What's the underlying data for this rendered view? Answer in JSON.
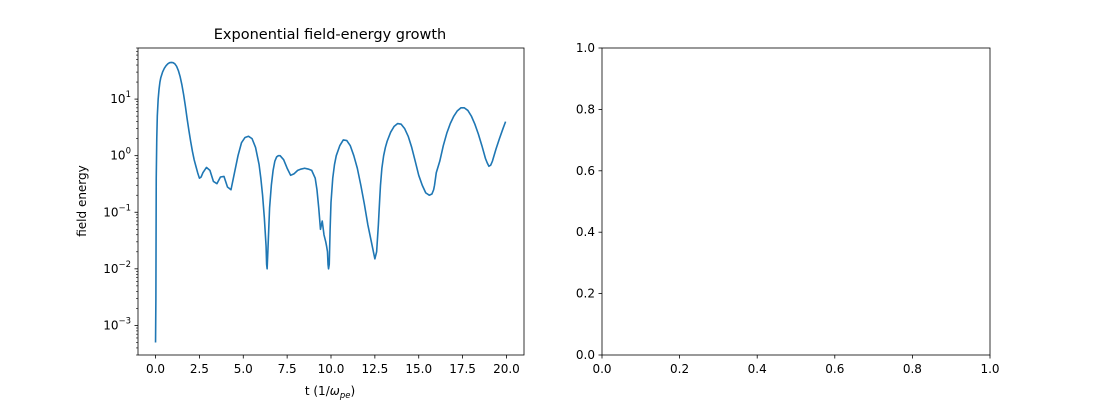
{
  "chart_data": [
    {
      "type": "line",
      "title": "Exponential field-energy growth",
      "xlabel_main": "t (1/",
      "xlabel_symbol": "ω",
      "xlabel_subscript": "pe",
      "xlabel_close": ")",
      "ylabel": "field energy",
      "yscale": "log",
      "xlim": [
        -0.9998,
        20.9998
      ],
      "ylim": [
        0.0003,
        80
      ],
      "xticks": [
        0,
        2.5,
        5,
        7.5,
        10,
        12.5,
        15,
        17.5,
        20
      ],
      "xtick_labels": [
        "0.0",
        "2.5",
        "5.0",
        "7.5",
        "10.0",
        "12.5",
        "15.0",
        "17.5",
        "20.0"
      ],
      "yticks": [
        0.001,
        0.01,
        0.1,
        1,
        10
      ],
      "ytick_labels": [
        {
          "base": "10",
          "exp": "−3"
        },
        {
          "base": "10",
          "exp": "−2"
        },
        {
          "base": "10",
          "exp": "−1"
        },
        {
          "base": "10",
          "exp": "0"
        },
        {
          "base": "10",
          "exp": "1"
        }
      ],
      "grid": false,
      "series": [
        {
          "color": "#1f77b4",
          "x": [
            0.0,
            0.02,
            0.04,
            0.07,
            0.1,
            0.15,
            0.2,
            0.25,
            0.3,
            0.4,
            0.5,
            0.6,
            0.7,
            0.8,
            0.9,
            1.0,
            1.1,
            1.2,
            1.3,
            1.4,
            1.5,
            1.6,
            1.7,
            1.8,
            1.9,
            2.0,
            2.1,
            2.2,
            2.3,
            2.4,
            2.5,
            2.6,
            2.7,
            2.9,
            3.1,
            3.3,
            3.5,
            3.7,
            3.9,
            4.1,
            4.3,
            4.5,
            4.7,
            4.9,
            5.1,
            5.3,
            5.5,
            5.7,
            5.9,
            6.0,
            6.1,
            6.2,
            6.3,
            6.33,
            6.36,
            6.4,
            6.5,
            6.6,
            6.7,
            6.8,
            6.9,
            7.0,
            7.1,
            7.3,
            7.5,
            7.7,
            7.9,
            8.1,
            8.3,
            8.5,
            8.7,
            8.9,
            9.1,
            9.2,
            9.3,
            9.4,
            9.5,
            9.6,
            9.7,
            9.75,
            9.8,
            9.83,
            9.86,
            9.9,
            9.95,
            10.0,
            10.1,
            10.2,
            10.3,
            10.5,
            10.7,
            10.9,
            11.1,
            11.3,
            11.5,
            11.7,
            11.9,
            12.1,
            12.3,
            12.5,
            12.6,
            12.7,
            12.75,
            12.78,
            12.82,
            12.9,
            13.0,
            13.1,
            13.2,
            13.4,
            13.6,
            13.8,
            14.0,
            14.2,
            14.4,
            14.6,
            14.8,
            15.0,
            15.2,
            15.4,
            15.6,
            15.75,
            15.85,
            15.9,
            16.0,
            16.2,
            16.4,
            16.6,
            16.8,
            17.0,
            17.2,
            17.4,
            17.6,
            17.8,
            18.0,
            18.2,
            18.4,
            18.6,
            18.8,
            18.9,
            19.0,
            19.1,
            19.2,
            19.4,
            19.6,
            19.8,
            19.95
          ],
          "y": [
            0.0005,
            0.003,
            0.4,
            2.0,
            5.0,
            10.0,
            15.0,
            20.0,
            24.0,
            30.0,
            35.0,
            39.0,
            42.0,
            44.0,
            44.5,
            44.0,
            42.0,
            38.0,
            32.0,
            25.0,
            18.0,
            12.0,
            7.5,
            4.5,
            2.8,
            1.8,
            1.2,
            0.85,
            0.65,
            0.5,
            0.4,
            0.42,
            0.5,
            0.62,
            0.55,
            0.35,
            0.32,
            0.42,
            0.43,
            0.28,
            0.25,
            0.5,
            1.0,
            1.7,
            2.1,
            2.2,
            2.0,
            1.4,
            0.7,
            0.4,
            0.2,
            0.08,
            0.025,
            0.012,
            0.01,
            0.02,
            0.12,
            0.3,
            0.55,
            0.8,
            0.95,
            1.0,
            1.0,
            0.85,
            0.6,
            0.45,
            0.48,
            0.55,
            0.58,
            0.6,
            0.58,
            0.55,
            0.4,
            0.25,
            0.12,
            0.05,
            0.07,
            0.04,
            0.03,
            0.025,
            0.02,
            0.012,
            0.01,
            0.012,
            0.05,
            0.15,
            0.4,
            0.7,
            1.0,
            1.5,
            1.9,
            1.85,
            1.5,
            1.0,
            0.6,
            0.3,
            0.14,
            0.06,
            0.03,
            0.015,
            0.02,
            0.06,
            0.12,
            0.18,
            0.3,
            0.6,
            1.0,
            1.4,
            1.8,
            2.6,
            3.3,
            3.7,
            3.6,
            3.0,
            2.2,
            1.4,
            0.8,
            0.45,
            0.3,
            0.22,
            0.2,
            0.21,
            0.25,
            0.3,
            0.5,
            0.8,
            1.5,
            2.5,
            3.7,
            5.0,
            6.2,
            7.0,
            7.0,
            6.3,
            5.0,
            3.6,
            2.4,
            1.5,
            0.9,
            0.75,
            0.65,
            0.68,
            0.8,
            1.3,
            2.0,
            3.0,
            4.0
          ]
        }
      ]
    },
    {
      "type": "line",
      "title": "",
      "xlabel": "",
      "ylabel": "",
      "xlim": [
        0,
        1
      ],
      "ylim": [
        0,
        1
      ],
      "xticks": [
        0,
        0.2,
        0.4,
        0.6,
        0.8,
        1.0
      ],
      "xtick_labels": [
        "0.0",
        "0.2",
        "0.4",
        "0.6",
        "0.8",
        "1.0"
      ],
      "yticks": [
        0,
        0.2,
        0.4,
        0.6,
        0.8,
        1.0
      ],
      "ytick_labels": [
        "0.0",
        "0.2",
        "0.4",
        "0.6",
        "0.8",
        "1.0"
      ],
      "grid": false,
      "series": []
    }
  ]
}
